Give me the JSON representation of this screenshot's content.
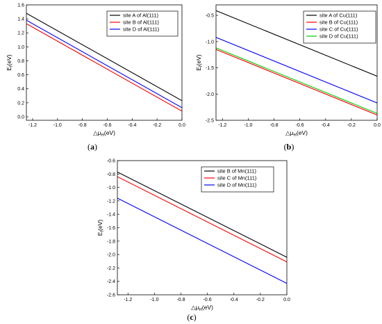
{
  "chart_data": [
    {
      "type": "line",
      "caption": "(a)",
      "caption_letter": "a",
      "xlabel": "△μ_H(eV)",
      "ylabel": "E_f(eV)",
      "xlim": [
        -1.25,
        0.0
      ],
      "ylim": [
        -0.05,
        1.6
      ],
      "xticks": [
        -1.2,
        -1.0,
        -0.8,
        -0.6,
        -0.4,
        -0.2,
        0.0
      ],
      "xtick_labels": [
        "-1.2",
        "-1.0",
        "-0.8",
        "-0.6",
        "-0.4",
        "-0.2",
        "0.0"
      ],
      "yticks": [
        0.0,
        0.2,
        0.4,
        0.6,
        0.8,
        1.0,
        1.2,
        1.4,
        1.6
      ],
      "ytick_labels": [
        "0.0",
        "0.2",
        "0.4",
        "0.6",
        "0.8",
        "1.0",
        "1.2",
        "1.4",
        "1.6"
      ],
      "legend_position": "top-right",
      "series": [
        {
          "name": "site A of Al(111)",
          "color": "#000000",
          "x": [
            -1.25,
            0.0
          ],
          "y": [
            1.48,
            0.23
          ]
        },
        {
          "name": "site B of Al(111)",
          "color": "#ff0000",
          "x": [
            -1.25,
            0.0
          ],
          "y": [
            1.33,
            0.08
          ]
        },
        {
          "name": "site D of Al(111)",
          "color": "#0000ff",
          "x": [
            -1.25,
            0.0
          ],
          "y": [
            1.38,
            0.13
          ]
        }
      ]
    },
    {
      "type": "line",
      "caption": "(b)",
      "caption_letter": "b",
      "xlabel": "△μ_H(eV)",
      "ylabel": "E_f(eV)",
      "xlim": [
        -1.25,
        0.0
      ],
      "ylim": [
        -2.5,
        -0.3
      ],
      "xticks": [
        -1.2,
        -1.0,
        -0.8,
        -0.6,
        -0.4,
        -0.2,
        0.0
      ],
      "xtick_labels": [
        "-1.2",
        "-1.0",
        "-0.8",
        "-0.6",
        "-0.4",
        "-0.2",
        "0.0"
      ],
      "yticks": [
        -2.5,
        -2.0,
        -1.5,
        -1.0,
        -0.5
      ],
      "ytick_labels": [
        "-2.5",
        "-2.0",
        "-1.5",
        "-1.0",
        "-0.5"
      ],
      "legend_position": "top-right",
      "series": [
        {
          "name": "site A of Cu(111)",
          "color": "#000000",
          "x": [
            -1.25,
            0.0
          ],
          "y": [
            -0.41,
            -1.66
          ]
        },
        {
          "name": "site B of Cu(111)",
          "color": "#ff0000",
          "x": [
            -1.25,
            0.0
          ],
          "y": [
            -1.15,
            -2.4
          ]
        },
        {
          "name": "site C of Cu(111)",
          "color": "#0000ff",
          "x": [
            -1.25,
            0.0
          ],
          "y": [
            -0.92,
            -2.17
          ]
        },
        {
          "name": "site D of Cu(111)",
          "color": "#00cc00",
          "x": [
            -1.25,
            0.0
          ],
          "y": [
            -1.12,
            -2.37
          ]
        }
      ]
    },
    {
      "type": "line",
      "caption": "(c)",
      "caption_letter": "c",
      "xlabel": "△μ_H(eV)",
      "ylabel": "E_f(eV)",
      "xlim": [
        -1.28,
        0.0
      ],
      "ylim": [
        -2.6,
        -0.6
      ],
      "xticks": [
        -1.2,
        -1.0,
        -0.8,
        -0.6,
        -0.4,
        -0.2,
        0.0
      ],
      "xtick_labels": [
        "-1.2",
        "-1.0",
        "-0.8",
        "-0.6",
        "-0.4",
        "-0.2",
        "0.0"
      ],
      "yticks": [
        -2.6,
        -2.4,
        -2.2,
        -2.0,
        -1.8,
        -1.6,
        -1.4,
        -1.2,
        -1.0,
        -0.8,
        -0.6
      ],
      "ytick_labels": [
        "-2.6",
        "-2.4",
        "-2.2",
        "-2.0",
        "-1.8",
        "-1.6",
        "-1.4",
        "-1.2",
        "-1.0",
        "-0.8",
        "-0.6"
      ],
      "legend_position": "top-right",
      "series": [
        {
          "name": "site B of Mn(111)",
          "color": "#000000",
          "x": [
            -1.28,
            0.0
          ],
          "y": [
            -0.77,
            -2.04
          ]
        },
        {
          "name": "site C of Mn(111)",
          "color": "#ff0000",
          "x": [
            -1.28,
            0.0
          ],
          "y": [
            -0.84,
            -2.11
          ]
        },
        {
          "name": "site D of Mn(111)",
          "color": "#0000ff",
          "x": [
            -1.28,
            0.0
          ],
          "y": [
            -1.16,
            -2.43
          ]
        }
      ]
    }
  ]
}
